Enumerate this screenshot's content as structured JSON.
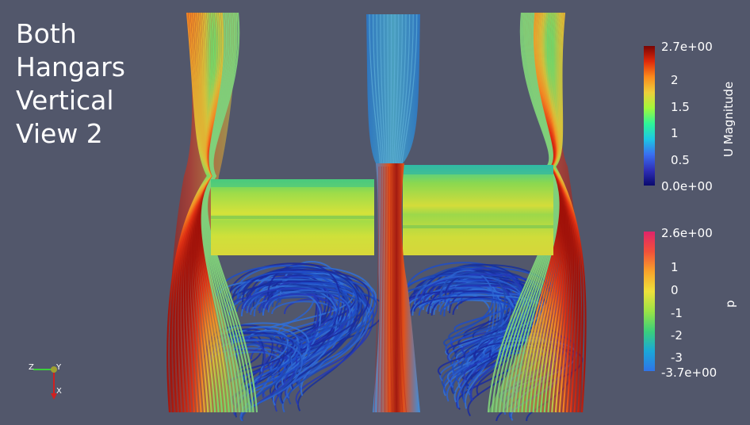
{
  "title_lines": [
    "Both",
    "Hangars",
    "Vertical",
    "View 2"
  ],
  "colorbar_u": {
    "title": "U Magnitude",
    "max_label": "2.7e+00",
    "min_label": "0.0e+00",
    "ticks": [
      "2",
      "1.5",
      "1",
      "0.5"
    ],
    "colors": [
      "#7a0403",
      "#e02a0a",
      "#fb8b1c",
      "#eecf3a",
      "#a2f93a",
      "#2ff597",
      "#1cc8e4",
      "#3a6ef0",
      "#2f2fb8",
      "#0a0a6e"
    ]
  },
  "colorbar_p": {
    "title": "p",
    "max_label": "2.6e+00",
    "min_label": "-3.7e+00",
    "ticks": [
      "1",
      "0",
      "-1",
      "-2",
      "-3"
    ],
    "colors": [
      "#e0246a",
      "#f2503a",
      "#f8a32a",
      "#eee23a",
      "#9be345",
      "#3bd07a",
      "#1aa8d8",
      "#2f74e8"
    ]
  },
  "orientation_axes": {
    "z": "Z",
    "y": "Y",
    "x": "X"
  }
}
